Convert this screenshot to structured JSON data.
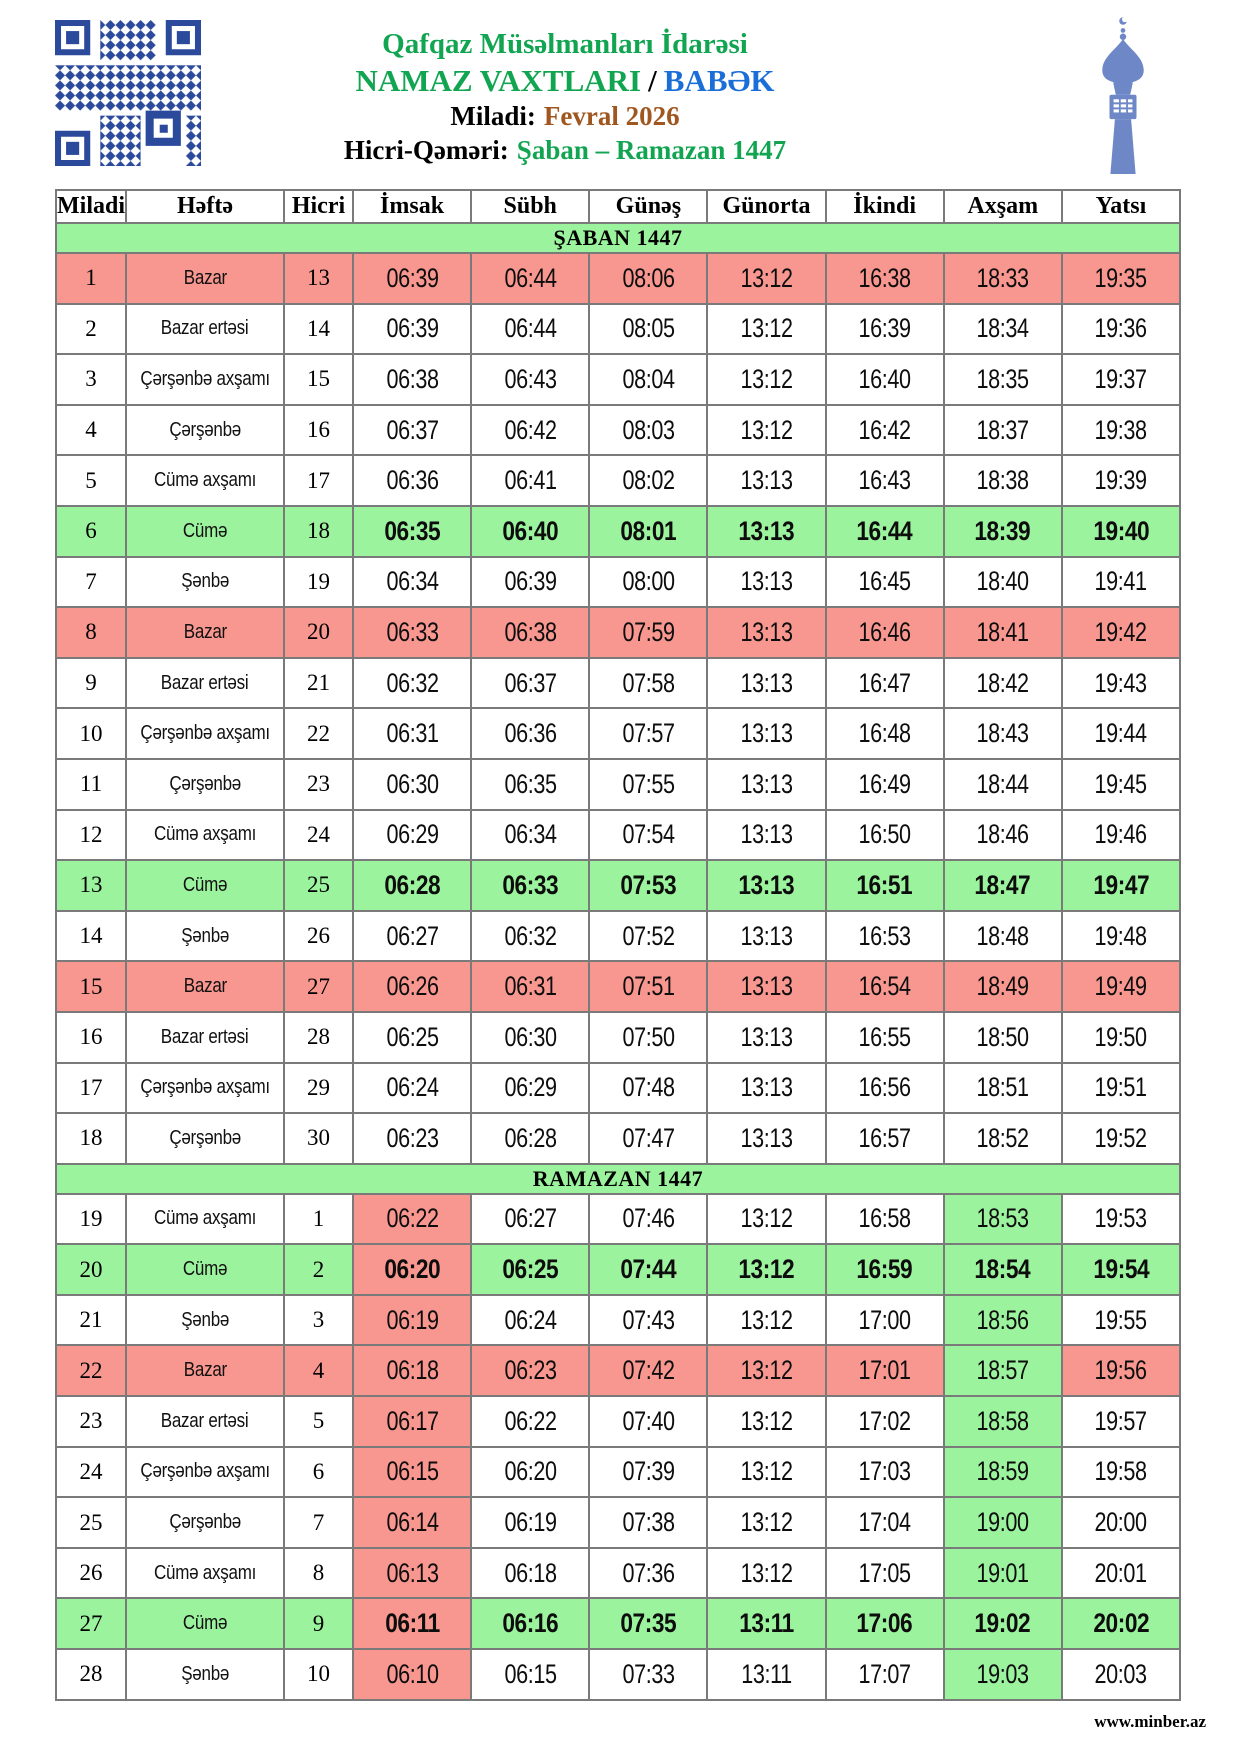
{
  "header": {
    "org": "Qafqaz Müsəlmanları İdarəsi",
    "title": "NAMAZ VAXTLARI",
    "title_sep": "/",
    "region": "BABƏK",
    "miladi_label": "Miladi:",
    "miladi_value": "Fevral 2026",
    "hicri_label": "Hicri-Qəməri:",
    "hicri_value": "Şaban – Ramazan 1447"
  },
  "icons": {
    "qr_code": "qr-code",
    "minaret": "minaret-silhouette"
  },
  "colors": {
    "green_accent": "#12a551",
    "blue_accent": "#1b6ed8",
    "brown_accent": "#a0561f",
    "row_green": "#9cf39d",
    "row_salmon": "#f8978f",
    "grid_border": "#7a7a7a",
    "qr_blue": "#2b4a9c",
    "minaret_blue": "#6d87c7"
  },
  "table": {
    "columns": [
      "Miladi",
      "Həftə",
      "Hicri",
      "İmsak",
      "Sübh",
      "Günəş",
      "Günorta",
      "İkindi",
      "Axşam",
      "Yatsı"
    ],
    "time_keys": [
      "imsak",
      "subh",
      "gunesh",
      "gunorta",
      "ikindi",
      "aksham",
      "yatsi"
    ],
    "sections": [
      {
        "banner": "ŞABAN 1447",
        "highlight_cols": false,
        "rows": [
          {
            "d": "1",
            "w": "Bazar",
            "h": "13",
            "type": "sunday",
            "t": [
              "06:39",
              "06:44",
              "08:06",
              "13:12",
              "16:38",
              "18:33",
              "19:35"
            ]
          },
          {
            "d": "2",
            "w": "Bazar ertəsi",
            "h": "14",
            "type": "normal",
            "t": [
              "06:39",
              "06:44",
              "08:05",
              "13:12",
              "16:39",
              "18:34",
              "19:36"
            ]
          },
          {
            "d": "3",
            "w": "Çərşənbə axşamı",
            "h": "15",
            "type": "normal",
            "t": [
              "06:38",
              "06:43",
              "08:04",
              "13:12",
              "16:40",
              "18:35",
              "19:37"
            ]
          },
          {
            "d": "4",
            "w": "Çərşənbə",
            "h": "16",
            "type": "normal",
            "t": [
              "06:37",
              "06:42",
              "08:03",
              "13:12",
              "16:42",
              "18:37",
              "19:38"
            ]
          },
          {
            "d": "5",
            "w": "Cümə axşamı",
            "h": "17",
            "type": "normal",
            "t": [
              "06:36",
              "06:41",
              "08:02",
              "13:13",
              "16:43",
              "18:38",
              "19:39"
            ]
          },
          {
            "d": "6",
            "w": "Cümə",
            "h": "18",
            "type": "friday",
            "t": [
              "06:35",
              "06:40",
              "08:01",
              "13:13",
              "16:44",
              "18:39",
              "19:40"
            ]
          },
          {
            "d": "7",
            "w": "Şənbə",
            "h": "19",
            "type": "normal",
            "t": [
              "06:34",
              "06:39",
              "08:00",
              "13:13",
              "16:45",
              "18:40",
              "19:41"
            ]
          },
          {
            "d": "8",
            "w": "Bazar",
            "h": "20",
            "type": "sunday",
            "t": [
              "06:33",
              "06:38",
              "07:59",
              "13:13",
              "16:46",
              "18:41",
              "19:42"
            ]
          },
          {
            "d": "9",
            "w": "Bazar ertəsi",
            "h": "21",
            "type": "normal",
            "t": [
              "06:32",
              "06:37",
              "07:58",
              "13:13",
              "16:47",
              "18:42",
              "19:43"
            ]
          },
          {
            "d": "10",
            "w": "Çərşənbə axşamı",
            "h": "22",
            "type": "normal",
            "t": [
              "06:31",
              "06:36",
              "07:57",
              "13:13",
              "16:48",
              "18:43",
              "19:44"
            ]
          },
          {
            "d": "11",
            "w": "Çərşənbə",
            "h": "23",
            "type": "normal",
            "t": [
              "06:30",
              "06:35",
              "07:55",
              "13:13",
              "16:49",
              "18:44",
              "19:45"
            ]
          },
          {
            "d": "12",
            "w": "Cümə axşamı",
            "h": "24",
            "type": "normal",
            "t": [
              "06:29",
              "06:34",
              "07:54",
              "13:13",
              "16:50",
              "18:46",
              "19:46"
            ]
          },
          {
            "d": "13",
            "w": "Cümə",
            "h": "25",
            "type": "friday",
            "t": [
              "06:28",
              "06:33",
              "07:53",
              "13:13",
              "16:51",
              "18:47",
              "19:47"
            ]
          },
          {
            "d": "14",
            "w": "Şənbə",
            "h": "26",
            "type": "normal",
            "t": [
              "06:27",
              "06:32",
              "07:52",
              "13:13",
              "16:53",
              "18:48",
              "19:48"
            ]
          },
          {
            "d": "15",
            "w": "Bazar",
            "h": "27",
            "type": "sunday",
            "t": [
              "06:26",
              "06:31",
              "07:51",
              "13:13",
              "16:54",
              "18:49",
              "19:49"
            ]
          },
          {
            "d": "16",
            "w": "Bazar ertəsi",
            "h": "28",
            "type": "normal",
            "t": [
              "06:25",
              "06:30",
              "07:50",
              "13:13",
              "16:55",
              "18:50",
              "19:50"
            ]
          },
          {
            "d": "17",
            "w": "Çərşənbə axşamı",
            "h": "29",
            "type": "normal",
            "t": [
              "06:24",
              "06:29",
              "07:48",
              "13:13",
              "16:56",
              "18:51",
              "19:51"
            ]
          },
          {
            "d": "18",
            "w": "Çərşənbə",
            "h": "30",
            "type": "normal",
            "t": [
              "06:23",
              "06:28",
              "07:47",
              "13:13",
              "16:57",
              "18:52",
              "19:52"
            ]
          }
        ]
      },
      {
        "banner": "RAMAZAN 1447",
        "highlight_cols": true,
        "rows": [
          {
            "d": "19",
            "w": "Cümə axşamı",
            "h": "1",
            "type": "normal",
            "t": [
              "06:22",
              "06:27",
              "07:46",
              "13:12",
              "16:58",
              "18:53",
              "19:53"
            ]
          },
          {
            "d": "20",
            "w": "Cümə",
            "h": "2",
            "type": "friday",
            "t": [
              "06:20",
              "06:25",
              "07:44",
              "13:12",
              "16:59",
              "18:54",
              "19:54"
            ]
          },
          {
            "d": "21",
            "w": "Şənbə",
            "h": "3",
            "type": "normal",
            "t": [
              "06:19",
              "06:24",
              "07:43",
              "13:12",
              "17:00",
              "18:56",
              "19:55"
            ]
          },
          {
            "d": "22",
            "w": "Bazar",
            "h": "4",
            "type": "sunday",
            "t": [
              "06:18",
              "06:23",
              "07:42",
              "13:12",
              "17:01",
              "18:57",
              "19:56"
            ]
          },
          {
            "d": "23",
            "w": "Bazar ertəsi",
            "h": "5",
            "type": "normal",
            "t": [
              "06:17",
              "06:22",
              "07:40",
              "13:12",
              "17:02",
              "18:58",
              "19:57"
            ]
          },
          {
            "d": "24",
            "w": "Çərşənbə axşamı",
            "h": "6",
            "type": "normal",
            "t": [
              "06:15",
              "06:20",
              "07:39",
              "13:12",
              "17:03",
              "18:59",
              "19:58"
            ]
          },
          {
            "d": "25",
            "w": "Çərşənbə",
            "h": "7",
            "type": "normal",
            "t": [
              "06:14",
              "06:19",
              "07:38",
              "13:12",
              "17:04",
              "19:00",
              "20:00"
            ]
          },
          {
            "d": "26",
            "w": "Cümə axşamı",
            "h": "8",
            "type": "normal",
            "t": [
              "06:13",
              "06:18",
              "07:36",
              "13:12",
              "17:05",
              "19:01",
              "20:01"
            ]
          },
          {
            "d": "27",
            "w": "Cümə",
            "h": "9",
            "type": "friday",
            "t": [
              "06:11",
              "06:16",
              "07:35",
              "13:11",
              "17:06",
              "19:02",
              "20:02"
            ]
          },
          {
            "d": "28",
            "w": "Şənbə",
            "h": "10",
            "type": "normal",
            "t": [
              "06:10",
              "06:15",
              "07:33",
              "13:11",
              "17:07",
              "19:03",
              "20:03"
            ]
          }
        ]
      }
    ]
  },
  "footer": {
    "site": "www.minber.az"
  }
}
